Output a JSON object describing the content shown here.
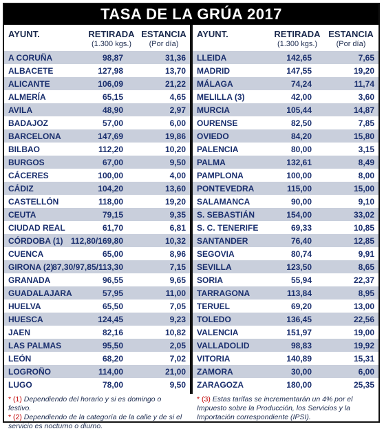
{
  "title": "TASA DE LA GRÚA 2017",
  "headers": {
    "ayunt": "AYUNT.",
    "retirada": "RETIRADA",
    "retirada_sub": "(1.300 kgs.)",
    "estancia": "ESTANCIA",
    "estancia_sub": "(Por día)"
  },
  "left_rows": [
    {
      "name": "A CORUÑA",
      "retirada": "98,87",
      "estancia": "31,36"
    },
    {
      "name": "ALBACETE",
      "retirada": "127,98",
      "estancia": "13,70"
    },
    {
      "name": "ALICANTE",
      "retirada": "106,09",
      "estancia": "21,22"
    },
    {
      "name": "ALMERÍA",
      "retirada": "65,15",
      "estancia": "4,65"
    },
    {
      "name": "AVILA",
      "retirada": "48,90",
      "estancia": "2,97"
    },
    {
      "name": "BADAJOZ",
      "retirada": "57,00",
      "estancia": "6,00"
    },
    {
      "name": "BARCELONA",
      "retirada": "147,69",
      "estancia": "19,86"
    },
    {
      "name": "BILBAO",
      "retirada": "112,20",
      "estancia": "10,20"
    },
    {
      "name": "BURGOS",
      "retirada": "67,00",
      "estancia": "9,50"
    },
    {
      "name": "CÁCERES",
      "retirada": "100,00",
      "estancia": "4,00"
    },
    {
      "name": "CÁDIZ",
      "retirada": "104,20",
      "estancia": "13,60"
    },
    {
      "name": "CASTELLÓN",
      "retirada": "118,00",
      "estancia": "19,20"
    },
    {
      "name": "CEUTA",
      "retirada": "79,15",
      "estancia": "9,35"
    },
    {
      "name": "CIUDAD REAL",
      "retirada": "61,70",
      "estancia": "6,81"
    },
    {
      "name": "CÓRDOBA (1)",
      "retirada": "112,80/169,80",
      "estancia": "10,32"
    },
    {
      "name": "CUENCA",
      "retirada": "65,00",
      "estancia": "8,96"
    },
    {
      "name": "GIRONA (2)",
      "retirada": "87,30/97,85/113,30",
      "estancia": "7,15"
    },
    {
      "name": "GRANADA",
      "retirada": "96,55",
      "estancia": "9,65"
    },
    {
      "name": "GUADALAJARA",
      "retirada": "57,95",
      "estancia": "11,00"
    },
    {
      "name": "HUELVA",
      "retirada": "65,50",
      "estancia": "7,05"
    },
    {
      "name": "HUESCA",
      "retirada": "124,45",
      "estancia": "9,23"
    },
    {
      "name": "JAEN",
      "retirada": "82,16",
      "estancia": "10,82"
    },
    {
      "name": "LAS PALMAS",
      "retirada": "95,50",
      "estancia": "2,05"
    },
    {
      "name": "LEÓN",
      "retirada": "68,20",
      "estancia": "7,02"
    },
    {
      "name": "LOGROÑO",
      "retirada": "114,00",
      "estancia": "21,00"
    },
    {
      "name": "LUGO",
      "retirada": "78,00",
      "estancia": "9,50"
    }
  ],
  "right_rows": [
    {
      "name": "LLEIDA",
      "retirada": "142,65",
      "estancia": "7,65"
    },
    {
      "name": "MADRID",
      "retirada": "147,55",
      "estancia": "19,20"
    },
    {
      "name": "MÁLAGA",
      "retirada": "74,24",
      "estancia": "11,74"
    },
    {
      "name": "MELILLA (3)",
      "retirada": "42,00",
      "estancia": "3,60"
    },
    {
      "name": "MURCIA",
      "retirada": "105,44",
      "estancia": "14,87"
    },
    {
      "name": "OURENSE",
      "retirada": "82,50",
      "estancia": "7,85"
    },
    {
      "name": "OVIEDO",
      "retirada": "84,20",
      "estancia": "15,80"
    },
    {
      "name": "PALENCIA",
      "retirada": "80,00",
      "estancia": "3,15"
    },
    {
      "name": "PALMA",
      "retirada": "132,61",
      "estancia": "8,49"
    },
    {
      "name": "PAMPLONA",
      "retirada": "100,00",
      "estancia": "8,00"
    },
    {
      "name": "PONTEVEDRA",
      "retirada": "115,00",
      "estancia": "15,00"
    },
    {
      "name": "SALAMANCA",
      "retirada": "90,00",
      "estancia": "9,10"
    },
    {
      "name": "S. SEBASTIÁN",
      "retirada": "154,00",
      "estancia": "33,02"
    },
    {
      "name": "S. C. TENERIFE",
      "retirada": "69,33",
      "estancia": "10,85"
    },
    {
      "name": "SANTANDER",
      "retirada": "76,40",
      "estancia": "12,85"
    },
    {
      "name": "SEGOVIA",
      "retirada": "80,74",
      "estancia": "9,91"
    },
    {
      "name": "SEVILLA",
      "retirada": "123,50",
      "estancia": "8,65"
    },
    {
      "name": "SORIA",
      "retirada": "55,94",
      "estancia": "22,37"
    },
    {
      "name": "TARRAGONA",
      "retirada": "113,84",
      "estancia": "8,95"
    },
    {
      "name": "TERUEL",
      "retirada": "69,20",
      "estancia": "13,00"
    },
    {
      "name": "TOLEDO",
      "retirada": "136,45",
      "estancia": "22,56"
    },
    {
      "name": "VALENCIA",
      "retirada": "151,97",
      "estancia": "19,00"
    },
    {
      "name": "VALLADOLID",
      "retirada": "98,83",
      "estancia": "19,92"
    },
    {
      "name": "VITORIA",
      "retirada": "140,89",
      "estancia": "15,31"
    },
    {
      "name": "ZAMORA",
      "retirada": "30,00",
      "estancia": "6,00"
    },
    {
      "name": "ZARAGOZA",
      "retirada": "180,00",
      "estancia": "25,35"
    }
  ],
  "footnotes": {
    "left": [
      {
        "mark": "* (1)",
        "text": " Dependiendo del horario y si es domingo o festivo."
      },
      {
        "mark": "* (2)",
        "text": " Dependiendo de la categoría de la calle y de si el servicio es nocturno o diurno."
      }
    ],
    "right": [
      {
        "mark": "* (3)",
        "text": " Estas tarifas se incrementarán un 4% por el Impuesto sobre la Producción, los Servicios y la Importación correspondiente (IPSI)."
      }
    ]
  }
}
